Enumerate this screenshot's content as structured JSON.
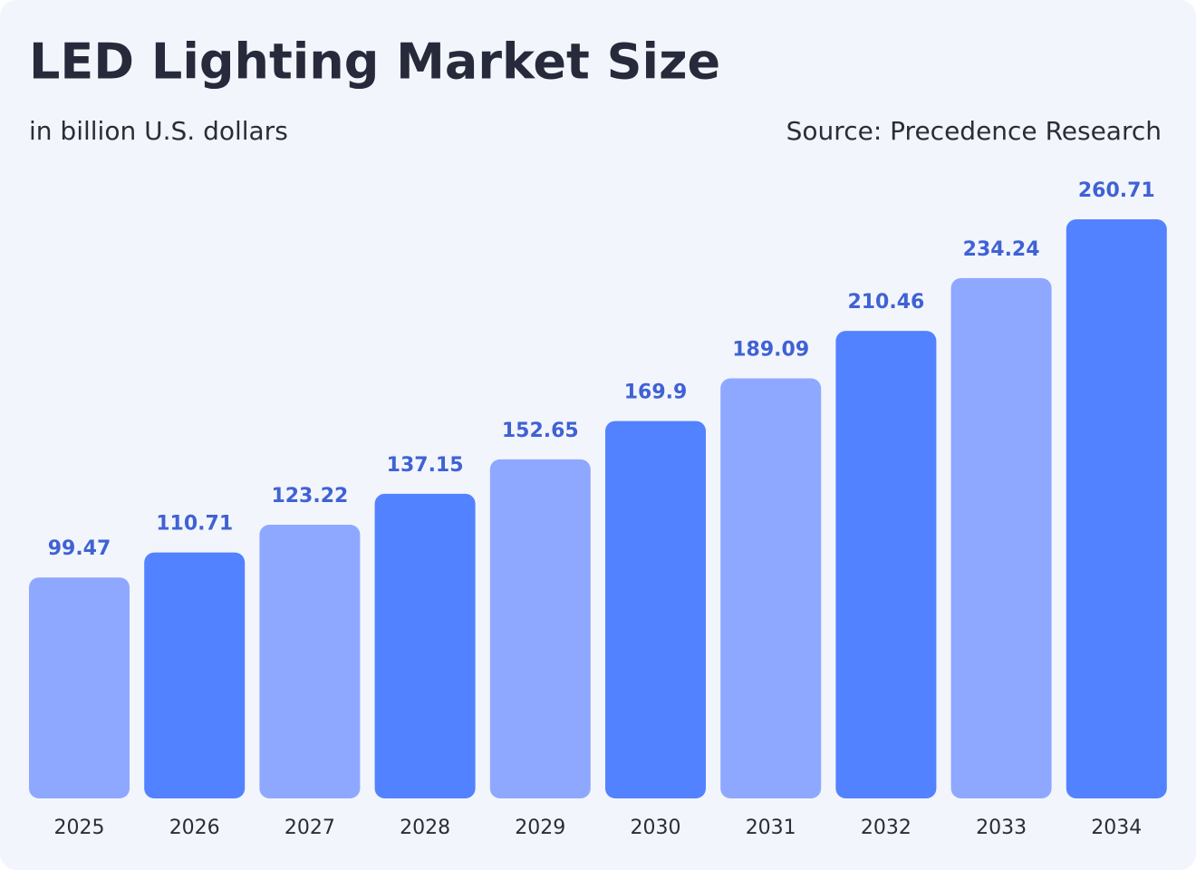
{
  "chart_data": {
    "type": "bar",
    "title": "LED Lighting Market Size",
    "subtitle": "in billion U.S. dollars",
    "source": "Source: Precedence Research",
    "categories": [
      "2025",
      "2026",
      "2027",
      "2028",
      "2029",
      "2030",
      "2031",
      "2032",
      "2033",
      "2034"
    ],
    "values": [
      99.47,
      110.71,
      123.22,
      137.15,
      152.65,
      169.9,
      189.09,
      210.46,
      234.24,
      260.71
    ],
    "colors": [
      "#8fa8ff",
      "#5282ff",
      "#8fa8ff",
      "#5282ff",
      "#8fa8ff",
      "#5282ff",
      "#8fa8ff",
      "#5282ff",
      "#8fa8ff",
      "#5282ff"
    ],
    "value_label_color": "#3f62d4"
  }
}
